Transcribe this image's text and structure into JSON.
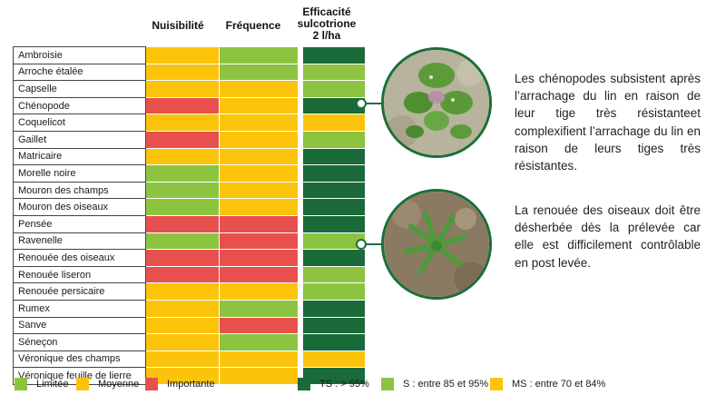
{
  "headers": {
    "nuisibilite": "Nuisibilité",
    "frequence": "Fréquence",
    "efficacite": [
      "Efficacité",
      "sulcotrione",
      "2 l/ha"
    ]
  },
  "colors": {
    "red": "#e8504e",
    "yellow": "#fbc40a",
    "lightgreen": "#8cc440",
    "darkgreen": "#1a6a3a",
    "brand": "#1b6e3a"
  },
  "rows": [
    {
      "name": "Ambroisie",
      "nuisibilite": "yellow",
      "frequence": "lightgreen",
      "efficacite": "darkgreen"
    },
    {
      "name": "Arroche étalée",
      "nuisibilite": "yellow",
      "frequence": "lightgreen",
      "efficacite": "lightgreen"
    },
    {
      "name": "Capselle",
      "nuisibilite": "yellow",
      "frequence": "yellow",
      "efficacite": "lightgreen"
    },
    {
      "name": "Chénopode",
      "nuisibilite": "red",
      "frequence": "yellow",
      "efficacite": "darkgreen"
    },
    {
      "name": "Coquelicot",
      "nuisibilite": "yellow",
      "frequence": "yellow",
      "efficacite": "yellow"
    },
    {
      "name": "Gaillet",
      "nuisibilite": "red",
      "frequence": "yellow",
      "efficacite": "lightgreen"
    },
    {
      "name": "Matricaire",
      "nuisibilite": "yellow",
      "frequence": "yellow",
      "efficacite": "darkgreen"
    },
    {
      "name": "Morelle noire",
      "nuisibilite": "lightgreen",
      "frequence": "yellow",
      "efficacite": "darkgreen"
    },
    {
      "name": "Mouron des champs",
      "nuisibilite": "lightgreen",
      "frequence": "yellow",
      "efficacite": "darkgreen"
    },
    {
      "name": "Mouron des oiseaux",
      "nuisibilite": "lightgreen",
      "frequence": "yellow",
      "efficacite": "darkgreen"
    },
    {
      "name": "Pensée",
      "nuisibilite": "red",
      "frequence": "red",
      "efficacite": "darkgreen"
    },
    {
      "name": "Ravenelle",
      "nuisibilite": "lightgreen",
      "frequence": "red",
      "efficacite": "lightgreen"
    },
    {
      "name": "Renouée des oiseaux",
      "nuisibilite": "red",
      "frequence": "red",
      "efficacite": "darkgreen"
    },
    {
      "name": "Renouée liseron",
      "nuisibilite": "red",
      "frequence": "red",
      "efficacite": "lightgreen"
    },
    {
      "name": "Renouée persicaire",
      "nuisibilite": "yellow",
      "frequence": "yellow",
      "efficacite": "lightgreen"
    },
    {
      "name": "Rumex",
      "nuisibilite": "yellow",
      "frequence": "lightgreen",
      "efficacite": "darkgreen"
    },
    {
      "name": "Sanve",
      "nuisibilite": "yellow",
      "frequence": "red",
      "efficacite": "darkgreen"
    },
    {
      "name": "Séneçon",
      "nuisibilite": "yellow",
      "frequence": "lightgreen",
      "efficacite": "darkgreen"
    },
    {
      "name": "Véronique des champs",
      "nuisibilite": "yellow",
      "frequence": "yellow",
      "efficacite": "yellow"
    },
    {
      "name": "Véronique feuille de lierre",
      "nuisibilite": "yellow",
      "frequence": "yellow",
      "efficacite": "darkgreen"
    }
  ],
  "legend": {
    "nuisibilite": [
      {
        "label": "Limitée",
        "color": "lightgreen"
      },
      {
        "label": "Moyenne",
        "color": "yellow"
      },
      {
        "label": "Importante",
        "color": "red"
      }
    ],
    "efficacite": [
      {
        "label": "TS : > 95%",
        "color": "darkgreen"
      },
      {
        "label": "S : entre 85 et 95%",
        "color": "lightgreen"
      },
      {
        "label": "MS : entre 70 et 84%",
        "color": "yellow"
      }
    ]
  },
  "notes": {
    "chenopode": "Les chénopodes subsistent après l’arrachage du lin en raison de leur tige très résistanteet complexifient l’arrachage du lin en raison de leurs tiges très résistantes.",
    "renouee": "La renouée des oiseaux doit être désherbée dès la prélevée car elle est difficilement contrôlable en post levée."
  },
  "icons": {
    "photo_chenopode": "chenopode-plant-photo",
    "photo_renouee": "renouee-plant-photo"
  }
}
